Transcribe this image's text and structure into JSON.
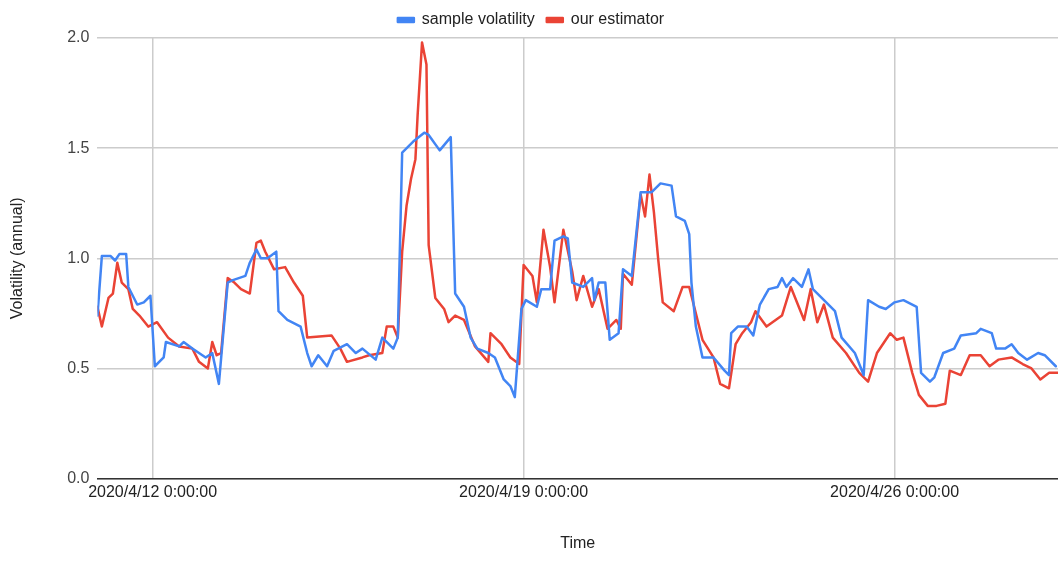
{
  "chart_data": {
    "type": "line",
    "xlabel": "Time",
    "ylabel": "Volatility (annual)",
    "xlim": [
      "2020-04-10T23:00",
      "2020-04-29T02:00"
    ],
    "xticks": [
      {
        "value": "2020-04-12T00:00",
        "label": "2020/4/12 0:00:00"
      },
      {
        "value": "2020-04-19T00:00",
        "label": "2020/4/19 0:00:00"
      },
      {
        "value": "2020-04-26T00:00",
        "label": "2020/4/26 0:00:00"
      }
    ],
    "ylim": [
      0,
      2
    ],
    "yticks": [
      {
        "value": 0,
        "label": "0.0"
      },
      {
        "value": 0.5,
        "label": "0.5"
      },
      {
        "value": 1,
        "label": "1.0"
      },
      {
        "value": 1.5,
        "label": "1.5"
      },
      {
        "value": 2,
        "label": "2.0"
      }
    ],
    "grid": true,
    "legend": "top",
    "marker": "none",
    "line_style": "solid",
    "series": [
      {
        "name": "sample volatility",
        "color": "#4285f4",
        "x": [
          "2020-04-10T23:00",
          "2020-04-11T01:00",
          "2020-04-11T05:00",
          "2020-04-11T07:00",
          "2020-04-11T09:00",
          "2020-04-11T12:00",
          "2020-04-11T13:00",
          "2020-04-11T17:00",
          "2020-04-11T20:00",
          "2020-04-11T23:00",
          "2020-04-12T01:00",
          "2020-04-12T05:00",
          "2020-04-12T06:00",
          "2020-04-12T12:00",
          "2020-04-12T14:00",
          "2020-04-12T18:00",
          "2020-04-12T21:00",
          "2020-04-13T00:00",
          "2020-04-13T03:00",
          "2020-04-13T06:00",
          "2020-04-13T08:00",
          "2020-04-13T10:00",
          "2020-04-13T12:00",
          "2020-04-13T18:00",
          "2020-04-13T20:00",
          "2020-04-13T23:00",
          "2020-04-14T01:00",
          "2020-04-14T04:00",
          "2020-04-14T08:00",
          "2020-04-14T09:00",
          "2020-04-14T13:00",
          "2020-04-14T19:00",
          "2020-04-14T22:00",
          "2020-04-15T00:00",
          "2020-04-15T03:00",
          "2020-04-15T07:00",
          "2020-04-15T10:00",
          "2020-04-15T16:00",
          "2020-04-15T20:00",
          "2020-04-15T23:00",
          "2020-04-16T05:00",
          "2020-04-16T08:00",
          "2020-04-16T13:00",
          "2020-04-16T15:00",
          "2020-04-16T17:00",
          "2020-04-16T22:00",
          "2020-04-17T03:00",
          "2020-04-17T05:00",
          "2020-04-17T10:00",
          "2020-04-17T15:00",
          "2020-04-17T17:00",
          "2020-04-17T21:00",
          "2020-04-18T00:00",
          "2020-04-18T03:00",
          "2020-04-18T08:00",
          "2020-04-18T11:00",
          "2020-04-18T15:00",
          "2020-04-18T18:00",
          "2020-04-18T20:00",
          "2020-04-18T23:00",
          "2020-04-19T01:00",
          "2020-04-19T06:00",
          "2020-04-19T08:00",
          "2020-04-19T12:00",
          "2020-04-19T14:00",
          "2020-04-19T18:00",
          "2020-04-19T20:00",
          "2020-04-19T22:00",
          "2020-04-20T03:00",
          "2020-04-20T07:00",
          "2020-04-20T08:00",
          "2020-04-20T10:00",
          "2020-04-20T13:00",
          "2020-04-20T15:00",
          "2020-04-20T19:00",
          "2020-04-20T21:00",
          "2020-04-21T01:00",
          "2020-04-21T05:00",
          "2020-04-21T10:00",
          "2020-04-21T14:00",
          "2020-04-21T19:00",
          "2020-04-21T21:00",
          "2020-04-22T01:00",
          "2020-04-22T03:00",
          "2020-04-22T04:00",
          "2020-04-22T06:00",
          "2020-04-22T09:00",
          "2020-04-22T14:00",
          "2020-04-22T19:00",
          "2020-04-22T21:00",
          "2020-04-22T22:00",
          "2020-04-23T01:00",
          "2020-04-23T05:00",
          "2020-04-23T08:00",
          "2020-04-23T11:00",
          "2020-04-23T15:00",
          "2020-04-23T19:00",
          "2020-04-23T21:00",
          "2020-04-23T23:00",
          "2020-04-24T02:00",
          "2020-04-24T06:00",
          "2020-04-24T09:00",
          "2020-04-24T11:00",
          "2020-04-24T15:00",
          "2020-04-24T21:00",
          "2020-04-25T00:00",
          "2020-04-25T06:00",
          "2020-04-25T10:00",
          "2020-04-25T12:00",
          "2020-04-25T17:00",
          "2020-04-25T20:00",
          "2020-04-26T00:00",
          "2020-04-26T04:00",
          "2020-04-26T10:00",
          "2020-04-26T12:00",
          "2020-04-26T16:00",
          "2020-04-26T18:00",
          "2020-04-26T22:00",
          "2020-04-27T03:00",
          "2020-04-27T06:00",
          "2020-04-27T13:00",
          "2020-04-27T15:00",
          "2020-04-27T20:00",
          "2020-04-27T22:00",
          "2020-04-28T02:00",
          "2020-04-28T05:00",
          "2020-04-28T08:00",
          "2020-04-28T12:00",
          "2020-04-28T17:00",
          "2020-04-28T20:00",
          "2020-04-29T01:00"
        ],
        "values": [
          0.74,
          1.01,
          1.01,
          0.99,
          1.02,
          1.02,
          0.87,
          0.79,
          0.8,
          0.83,
          0.51,
          0.55,
          0.62,
          0.6,
          0.62,
          0.59,
          0.57,
          0.55,
          0.57,
          0.43,
          0.66,
          0.89,
          0.9,
          0.92,
          0.98,
          1.04,
          1.0,
          1.0,
          1.03,
          0.76,
          0.72,
          0.69,
          0.57,
          0.51,
          0.56,
          0.51,
          0.58,
          0.61,
          0.57,
          0.59,
          0.54,
          0.64,
          0.59,
          0.64,
          1.48,
          1.53,
          1.57,
          1.56,
          1.49,
          1.55,
          0.84,
          0.78,
          0.64,
          0.59,
          0.57,
          0.55,
          0.45,
          0.42,
          0.37,
          0.77,
          0.81,
          0.78,
          0.86,
          0.86,
          1.08,
          1.1,
          1.09,
          0.89,
          0.87,
          0.91,
          0.81,
          0.89,
          0.89,
          0.63,
          0.66,
          0.95,
          0.92,
          1.3,
          1.3,
          1.34,
          1.33,
          1.19,
          1.17,
          1.11,
          0.89,
          0.69,
          0.55,
          0.55,
          0.49,
          0.47,
          0.66,
          0.69,
          0.69,
          0.65,
          0.79,
          0.86,
          0.87,
          0.91,
          0.87,
          0.91,
          0.87,
          0.95,
          0.86,
          0.82,
          0.76,
          0.64,
          0.57,
          0.47,
          0.81,
          0.78,
          0.77,
          0.8,
          0.81,
          0.78,
          0.48,
          0.44,
          0.46,
          0.57,
          0.59,
          0.65,
          0.66,
          0.68,
          0.66,
          0.59,
          0.59,
          0.61,
          0.57,
          0.54,
          0.57,
          0.56,
          0.51
        ]
      },
      {
        "name": "our estimator",
        "color": "#ea4335",
        "x": [
          "2020-04-10T23:00",
          "2020-04-11T01:00",
          "2020-04-11T04:00",
          "2020-04-11T06:00",
          "2020-04-11T08:00",
          "2020-04-11T10:00",
          "2020-04-11T13:00",
          "2020-04-11T15:00",
          "2020-04-11T18:00",
          "2020-04-11T22:00",
          "2020-04-12T02:00",
          "2020-04-12T07:00",
          "2020-04-12T12:00",
          "2020-04-12T18:00",
          "2020-04-12T21:00",
          "2020-04-13T01:00",
          "2020-04-13T03:00",
          "2020-04-13T05:00",
          "2020-04-13T07:00",
          "2020-04-13T10:00",
          "2020-04-13T13:00",
          "2020-04-13T16:00",
          "2020-04-13T20:00",
          "2020-04-13T23:00",
          "2020-04-14T01:00",
          "2020-04-14T03:00",
          "2020-04-14T07:00",
          "2020-04-14T12:00",
          "2020-04-14T16:00",
          "2020-04-14T20:00",
          "2020-04-14T22:00",
          "2020-04-15T09:00",
          "2020-04-15T13:00",
          "2020-04-15T16:00",
          "2020-04-15T23:00",
          "2020-04-16T02:00",
          "2020-04-16T08:00",
          "2020-04-16T10:00",
          "2020-04-16T13:00",
          "2020-04-16T15:00",
          "2020-04-16T17:00",
          "2020-04-16T19:00",
          "2020-04-16T21:00",
          "2020-04-16T23:00",
          "2020-04-17T00:00",
          "2020-04-17T02:00",
          "2020-04-17T04:00",
          "2020-04-17T05:00",
          "2020-04-17T08:00",
          "2020-04-17T12:00",
          "2020-04-17T14:00",
          "2020-04-17T17:00",
          "2020-04-17T21:00",
          "2020-04-18T02:00",
          "2020-04-18T08:00",
          "2020-04-18T09:00",
          "2020-04-18T14:00",
          "2020-04-18T18:00",
          "2020-04-18T22:00",
          "2020-04-19T00:00",
          "2020-04-19T04:00",
          "2020-04-19T06:00",
          "2020-04-19T09:00",
          "2020-04-19T12:00",
          "2020-04-19T14:00",
          "2020-04-19T18:00",
          "2020-04-19T22:00",
          "2020-04-20T00:00",
          "2020-04-20T03:00",
          "2020-04-20T07:00",
          "2020-04-20T10:00",
          "2020-04-20T14:00",
          "2020-04-20T18:00",
          "2020-04-20T20:00",
          "2020-04-20T21:00",
          "2020-04-21T01:00",
          "2020-04-21T05:00",
          "2020-04-21T07:00",
          "2020-04-21T09:00",
          "2020-04-21T11:00",
          "2020-04-21T13:00",
          "2020-04-21T15:00",
          "2020-04-21T20:00",
          "2020-04-22T00:00",
          "2020-04-22T03:00",
          "2020-04-22T09:00",
          "2020-04-22T14:00",
          "2020-04-22T17:00",
          "2020-04-22T21:00",
          "2020-04-23T00:00",
          "2020-04-23T03:00",
          "2020-04-23T07:00",
          "2020-04-23T09:00",
          "2020-04-23T14:00",
          "2020-04-23T21:00",
          "2020-04-24T01:00",
          "2020-04-24T07:00",
          "2020-04-24T10:00",
          "2020-04-24T13:00",
          "2020-04-24T16:00",
          "2020-04-24T20:00",
          "2020-04-25T02:00",
          "2020-04-25T08:00",
          "2020-04-25T12:00",
          "2020-04-25T16:00",
          "2020-04-25T22:00",
          "2020-04-26T01:00",
          "2020-04-26T04:00",
          "2020-04-26T08:00",
          "2020-04-26T11:00",
          "2020-04-26T15:00",
          "2020-04-26T19:00",
          "2020-04-26T23:00",
          "2020-04-27T01:00",
          "2020-04-27T06:00",
          "2020-04-27T10:00",
          "2020-04-27T15:00",
          "2020-04-27T19:00",
          "2020-04-27T23:00",
          "2020-04-28T05:00",
          "2020-04-28T10:00",
          "2020-04-28T14:00",
          "2020-04-28T18:00",
          "2020-04-28T22:00",
          "2020-04-29T02:00"
        ],
        "values": [
          0.78,
          0.69,
          0.82,
          0.84,
          0.98,
          0.89,
          0.86,
          0.77,
          0.74,
          0.69,
          0.71,
          0.64,
          0.6,
          0.59,
          0.53,
          0.5,
          0.62,
          0.56,
          0.57,
          0.91,
          0.89,
          0.86,
          0.84,
          1.07,
          1.08,
          1.03,
          0.95,
          0.96,
          0.89,
          0.83,
          0.64,
          0.65,
          0.59,
          0.53,
          0.55,
          0.56,
          0.57,
          0.69,
          0.69,
          0.64,
          1.03,
          1.24,
          1.36,
          1.45,
          1.65,
          1.98,
          1.88,
          1.06,
          0.82,
          0.77,
          0.71,
          0.74,
          0.72,
          0.6,
          0.53,
          0.66,
          0.61,
          0.55,
          0.52,
          0.97,
          0.92,
          0.8,
          1.13,
          0.96,
          0.8,
          1.13,
          0.94,
          0.81,
          0.92,
          0.78,
          0.86,
          0.68,
          0.72,
          0.68,
          0.93,
          0.88,
          1.29,
          1.19,
          1.38,
          1.21,
          0.99,
          0.8,
          0.76,
          0.87,
          0.87,
          0.63,
          0.55,
          0.43,
          0.41,
          0.61,
          0.66,
          0.71,
          0.76,
          0.69,
          0.74,
          0.87,
          0.72,
          0.86,
          0.71,
          0.79,
          0.64,
          0.57,
          0.48,
          0.44,
          0.57,
          0.66,
          0.63,
          0.64,
          0.48,
          0.38,
          0.33,
          0.33,
          0.34,
          0.49,
          0.47,
          0.56,
          0.56,
          0.51,
          0.54,
          0.55,
          0.52,
          0.5,
          0.45,
          0.48,
          0.48
        ]
      }
    ]
  }
}
